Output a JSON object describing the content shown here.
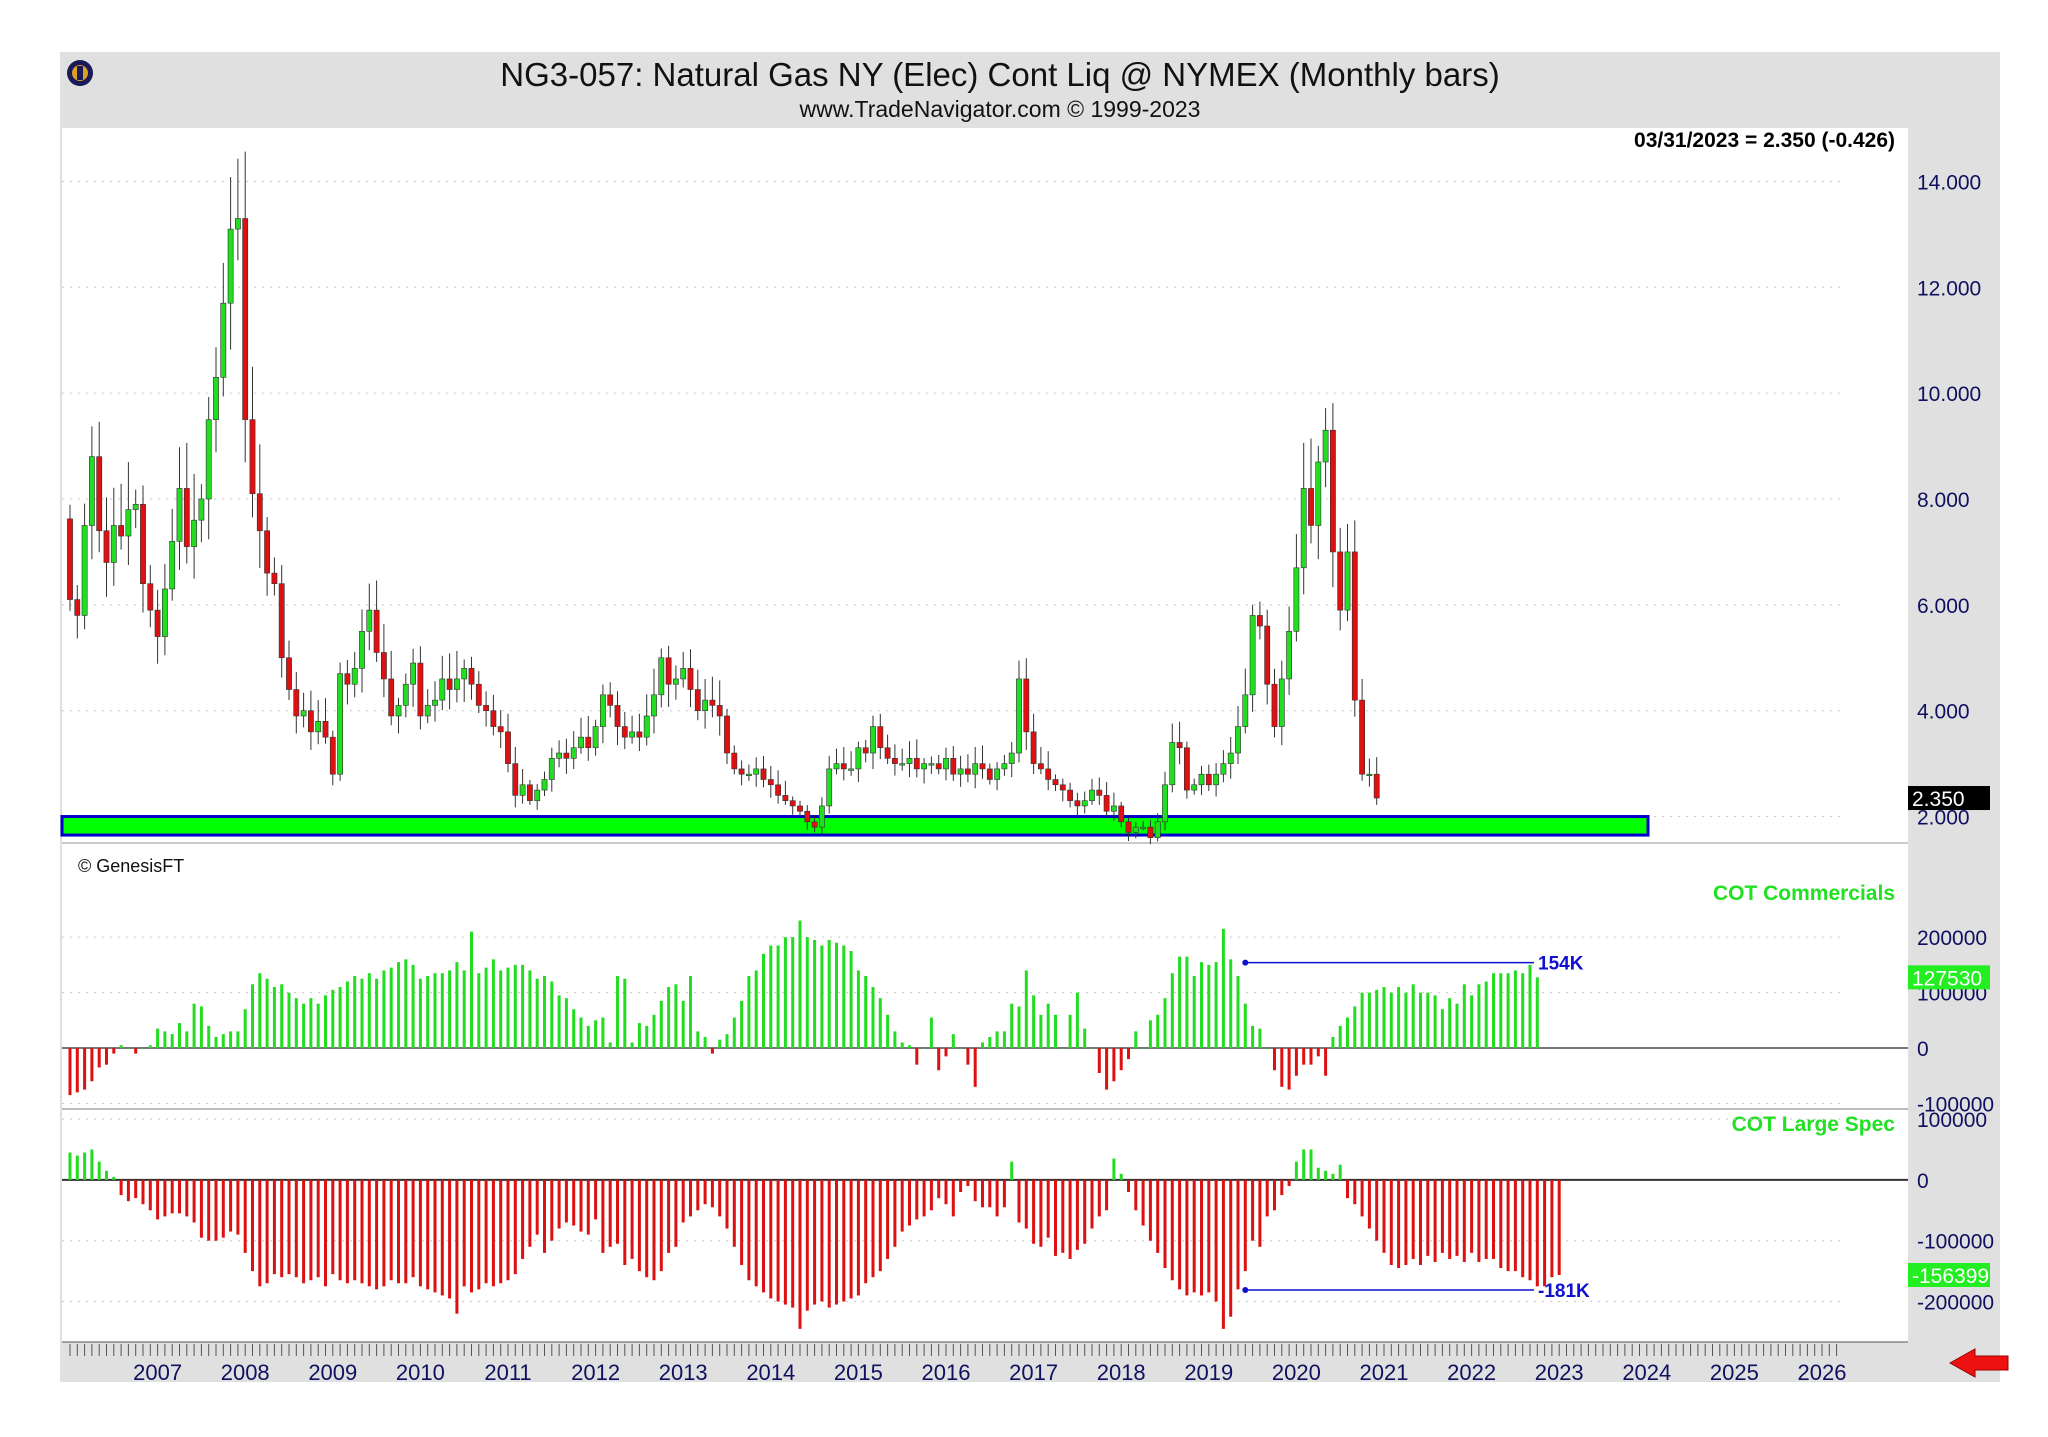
{
  "header": {
    "title": "NG3-057:  Natural Gas NY (Elec) Cont Liq @ NYMEX  (Monthly bars)",
    "subtitle": "www.TradeNavigator.com © 1999-2023",
    "last_price_label": "03/31/2023 = 2.350 (-0.426)"
  },
  "copyright": "© GenesisFT",
  "colors": {
    "up": "#22dd22",
    "down": "#dd1111",
    "support_zone": "#00ff00",
    "support_border": "#0000cc",
    "frame": "#e0e0e0",
    "arrow": "#ee1111",
    "blue_line": "#1010d0"
  },
  "icons": {
    "logo": "trade-navigator-logo-icon",
    "arrow": "left-arrow-icon"
  },
  "chart_data": [
    {
      "type": "candlestick",
      "title": "NG3-057:  Natural Gas NY (Elec) Cont Liq @ NYMEX  (Monthly bars)",
      "ylim": [
        1.5,
        14.5
      ],
      "yticks": [
        "14.000",
        "12.000",
        "10.000",
        "8.000",
        "6.000",
        "4.000",
        "2.000"
      ],
      "ytick_values": [
        14,
        12,
        10,
        8,
        6,
        4,
        2
      ],
      "last_value_label": "2.350",
      "support_zone": [
        1.65,
        2.0
      ],
      "bars_per_year": 12,
      "start": "2006-07",
      "closes": [
        6.1,
        5.8,
        7.5,
        8.8,
        7.4,
        6.8,
        7.5,
        7.3,
        7.8,
        7.9,
        6.4,
        5.9,
        5.4,
        6.3,
        7.2,
        8.2,
        7.1,
        7.6,
        8.0,
        9.5,
        10.3,
        11.7,
        13.1,
        13.3,
        9.5,
        8.1,
        7.4,
        6.6,
        6.4,
        5.0,
        4.4,
        3.9,
        4.0,
        3.6,
        3.8,
        3.5,
        2.8,
        4.7,
        4.5,
        4.8,
        5.5,
        5.9,
        5.1,
        4.6,
        3.9,
        4.1,
        4.5,
        4.9,
        3.9,
        4.1,
        4.2,
        4.6,
        4.4,
        4.6,
        4.8,
        4.5,
        4.1,
        4.0,
        3.7,
        3.6,
        3.0,
        2.4,
        2.6,
        2.3,
        2.5,
        2.7,
        3.1,
        3.2,
        3.1,
        3.3,
        3.5,
        3.3,
        3.7,
        4.3,
        4.1,
        3.7,
        3.5,
        3.6,
        3.5,
        3.9,
        4.3,
        5.0,
        4.5,
        4.6,
        4.8,
        4.4,
        4.0,
        4.2,
        4.1,
        3.9,
        3.2,
        2.9,
        2.8,
        2.8,
        2.9,
        2.7,
        2.6,
        2.4,
        2.3,
        2.2,
        2.1,
        1.9,
        1.8,
        2.2,
        2.9,
        3.0,
        2.9,
        2.9,
        3.3,
        3.2,
        3.7,
        3.3,
        3.1,
        3.0,
        3.0,
        3.1,
        2.9,
        3.0,
        3.0,
        2.9,
        3.1,
        2.8,
        2.9,
        2.8,
        3.0,
        2.9,
        2.7,
        2.9,
        3.0,
        3.2,
        4.6,
        3.6,
        3.0,
        2.9,
        2.7,
        2.6,
        2.5,
        2.3,
        2.2,
        2.3,
        2.5,
        2.4,
        2.1,
        2.2,
        1.9,
        1.7,
        1.8,
        1.8,
        1.6,
        1.9,
        2.6,
        3.4,
        3.3,
        2.5,
        2.6,
        2.8,
        2.6,
        2.8,
        3.0,
        3.2,
        3.7,
        4.3,
        5.8,
        5.6,
        4.5,
        3.7,
        4.6,
        5.5,
        6.7,
        8.2,
        7.5,
        8.7,
        9.3,
        7.0,
        5.9,
        7.0,
        4.2,
        2.8,
        2.8,
        2.35
      ]
    },
    {
      "type": "bar",
      "title": "COT Commercials",
      "ylim": [
        -110000,
        240000
      ],
      "yticks": [
        "200000",
        "100000",
        "0",
        "-100000"
      ],
      "ytick_values": [
        200000,
        100000,
        0,
        -100000
      ],
      "last_value_label": "127530",
      "marker_label": "154K",
      "marker_value": 154000,
      "bars_per_year": 12,
      "start": "2006-07",
      "values": [
        -85000,
        -80000,
        -75000,
        -60000,
        -35000,
        -30000,
        -10000,
        5000,
        0,
        -10000,
        0,
        5000,
        35000,
        30000,
        25000,
        45000,
        30000,
        80000,
        75000,
        40000,
        20000,
        25000,
        30000,
        30000,
        70000,
        115000,
        135000,
        125000,
        110000,
        115000,
        100000,
        90000,
        80000,
        90000,
        80000,
        95000,
        105000,
        110000,
        120000,
        130000,
        125000,
        135000,
        125000,
        140000,
        145000,
        155000,
        160000,
        150000,
        125000,
        130000,
        135000,
        135000,
        140000,
        155000,
        140000,
        210000,
        135000,
        145000,
        160000,
        140000,
        145000,
        150000,
        150000,
        140000,
        125000,
        130000,
        120000,
        95000,
        90000,
        70000,
        55000,
        40000,
        50000,
        55000,
        10000,
        130000,
        125000,
        10000,
        45000,
        40000,
        60000,
        85000,
        110000,
        115000,
        85000,
        130000,
        30000,
        20000,
        -10000,
        15000,
        25000,
        55000,
        85000,
        130000,
        140000,
        170000,
        185000,
        185000,
        200000,
        200000,
        230000,
        200000,
        195000,
        185000,
        195000,
        190000,
        185000,
        175000,
        140000,
        130000,
        110000,
        90000,
        60000,
        30000,
        10000,
        5000,
        -30000,
        0,
        55000,
        -40000,
        -15000,
        25000,
        0,
        -30000,
        -70000,
        10000,
        20000,
        30000,
        30000,
        80000,
        75000,
        140000,
        95000,
        60000,
        80000,
        60000,
        0,
        60000,
        100000,
        35000,
        0,
        -45000,
        -75000,
        -60000,
        -40000,
        -20000,
        30000,
        0,
        50000,
        60000,
        90000,
        135000,
        165000,
        165000,
        130000,
        155000,
        150000,
        155000,
        215000,
        160000,
        130000,
        80000,
        40000,
        35000,
        0,
        -40000,
        -70000,
        -75000,
        -50000,
        -30000,
        -30000,
        -15000,
        -50000,
        20000,
        40000,
        55000,
        75000,
        100000,
        100000,
        105000,
        110000,
        100000,
        110000,
        100000,
        115000,
        100000,
        100000,
        95000,
        70000,
        90000,
        80000,
        115000,
        95000,
        115000,
        120000,
        135000,
        135000,
        135000,
        140000,
        135000,
        150000,
        127530
      ]
    },
    {
      "type": "bar",
      "title": "COT Large Spec",
      "ylim": [
        -260000,
        110000
      ],
      "yticks": [
        "100000",
        "0",
        "-100000",
        "-200000"
      ],
      "ytick_values": [
        100000,
        0,
        -100000,
        -200000
      ],
      "last_value_label": "-156399",
      "marker_label": "-181K",
      "marker_value": -181000,
      "bars_per_year": 12,
      "start": "2006-07",
      "values": [
        45000,
        40000,
        45000,
        50000,
        30000,
        15000,
        5000,
        -25000,
        -35000,
        -30000,
        -40000,
        -50000,
        -65000,
        -60000,
        -55000,
        -55000,
        -60000,
        -70000,
        -95000,
        -100000,
        -100000,
        -95000,
        -85000,
        -90000,
        -120000,
        -150000,
        -175000,
        -170000,
        -155000,
        -160000,
        -155000,
        -160000,
        -170000,
        -165000,
        -160000,
        -175000,
        -155000,
        -165000,
        -170000,
        -165000,
        -170000,
        -175000,
        -180000,
        -175000,
        -165000,
        -170000,
        -170000,
        -160000,
        -175000,
        -180000,
        -185000,
        -190000,
        -195000,
        -220000,
        -175000,
        -185000,
        -180000,
        -170000,
        -175000,
        -170000,
        -165000,
        -155000,
        -130000,
        -110000,
        -90000,
        -120000,
        -100000,
        -80000,
        -70000,
        -75000,
        -85000,
        -90000,
        -65000,
        -120000,
        -110000,
        -105000,
        -140000,
        -130000,
        -150000,
        -160000,
        -165000,
        -150000,
        -120000,
        -110000,
        -70000,
        -60000,
        -50000,
        -40000,
        -45000,
        -60000,
        -80000,
        -110000,
        -140000,
        -165000,
        -175000,
        -185000,
        -195000,
        -200000,
        -205000,
        -210000,
        -245000,
        -215000,
        -205000,
        -200000,
        -210000,
        -205000,
        -200000,
        -195000,
        -190000,
        -170000,
        -160000,
        -150000,
        -130000,
        -110000,
        -85000,
        -75000,
        -65000,
        -60000,
        -50000,
        -30000,
        -40000,
        -60000,
        -20000,
        -10000,
        -35000,
        -45000,
        -45000,
        -60000,
        -45000,
        30000,
        -70000,
        -80000,
        -105000,
        -110000,
        -95000,
        -125000,
        -120000,
        -130000,
        -115000,
        -105000,
        -80000,
        -60000,
        -50000,
        35000,
        10000,
        -20000,
        -50000,
        -75000,
        -100000,
        -120000,
        -145000,
        -165000,
        -180000,
        -190000,
        -185000,
        -190000,
        -185000,
        -200000,
        -245000,
        -225000,
        -180000,
        -150000,
        -100000,
        -110000,
        -60000,
        -50000,
        -25000,
        -10000,
        30000,
        50000,
        50000,
        20000,
        15000,
        10000,
        25000,
        -30000,
        -40000,
        -60000,
        -80000,
        -100000,
        -120000,
        -140000,
        -145000,
        -140000,
        -130000,
        -140000,
        -125000,
        -135000,
        -120000,
        -130000,
        -125000,
        -135000,
        -120000,
        -135000,
        -130000,
        -130000,
        -145000,
        -150000,
        -150000,
        -160000,
        -165000,
        -175000,
        -175000,
        -160000,
        -156399
      ]
    }
  ],
  "x_axis": {
    "years": [
      "2007",
      "2008",
      "2009",
      "2010",
      "2011",
      "2012",
      "2013",
      "2014",
      "2015",
      "2016",
      "2017",
      "2018",
      "2019",
      "2020",
      "2021",
      "2022",
      "2023",
      "2024",
      "2025",
      "2026"
    ],
    "ticks_per_year": 12
  }
}
